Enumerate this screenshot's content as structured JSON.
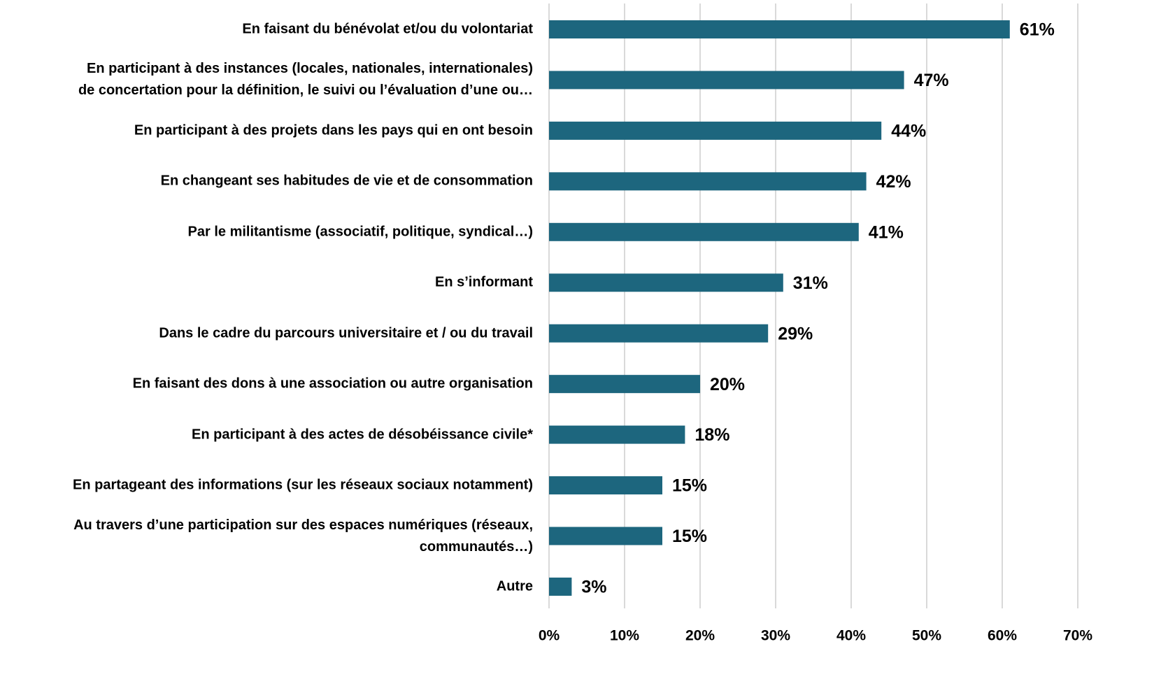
{
  "chart_data": {
    "type": "hbar",
    "categories": [
      "En faisant du bénévolat et/ou du volontariat",
      "En participant à des instances (locales, nationales, internationales)\nde concertation pour la définition, le suivi ou l’évaluation d’une ou…",
      "En participant à des projets dans les pays qui en ont besoin",
      "En changeant ses habitudes de vie et de consommation",
      "Par le militantisme (associatif, politique, syndical…)",
      "En s’informant",
      "Dans le cadre du parcours universitaire et / ou du travail",
      "En faisant des dons à une association ou autre organisation",
      "En participant à des actes de désobéissance civile*",
      "En partageant des informations (sur les réseaux sociaux notamment)",
      "Au travers d’une participation sur des espaces numériques (réseaux,\ncommunautés…)",
      "Autre"
    ],
    "values": [
      61,
      47,
      44,
      42,
      41,
      31,
      29,
      20,
      18,
      15,
      15,
      3
    ],
    "value_labels": [
      "61%",
      "47%",
      "44%",
      "42%",
      "41%",
      "31%",
      "29%",
      "20%",
      "18%",
      "15%",
      "15%",
      "3%"
    ],
    "color": "#1d667e",
    "xlim": [
      0,
      70
    ],
    "xticks": [
      {
        "value": 0,
        "label": "0%"
      },
      {
        "value": 10,
        "label": "10%"
      },
      {
        "value": 20,
        "label": "20%"
      },
      {
        "value": 30,
        "label": "30%"
      },
      {
        "value": 40,
        "label": "40%"
      },
      {
        "value": 50,
        "label": "50%"
      },
      {
        "value": 60,
        "label": "60%"
      },
      {
        "value": 70,
        "label": "70%"
      }
    ],
    "grid": true
  }
}
